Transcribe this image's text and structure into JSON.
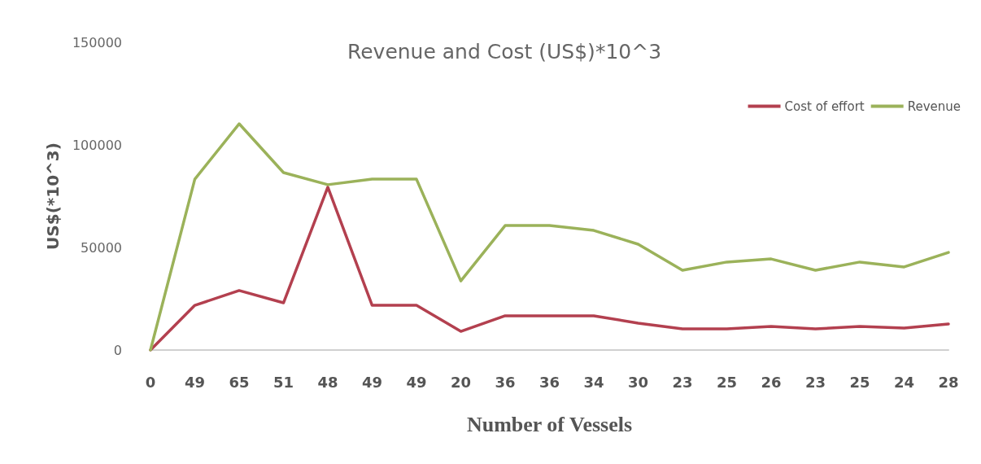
{
  "chart_data": {
    "type": "line",
    "title": "Revenue and Cost (US$)*10^3",
    "xlabel": "Number of Vessels",
    "ylabel": "US$(*10^3)",
    "categories": [
      "0",
      "49",
      "65",
      "51",
      "48",
      "49",
      "49",
      "20",
      "36",
      "36",
      "34",
      "30",
      "23",
      "25",
      "26",
      "23",
      "25",
      "24",
      "28"
    ],
    "series": [
      {
        "name": "Cost of effort",
        "color": "#b3404f",
        "values": [
          0,
          21800,
          29000,
          23000,
          79400,
          21800,
          21800,
          9100,
          16700,
          16700,
          16700,
          13100,
          10300,
          10300,
          11500,
          10300,
          11500,
          10700,
          12700
        ]
      },
      {
        "name": "Revenue",
        "color": "#9bb25a",
        "values": [
          0,
          83300,
          110300,
          86500,
          80600,
          83300,
          83300,
          33700,
          60700,
          60700,
          58300,
          51600,
          38900,
          42900,
          44400,
          38900,
          42900,
          40500,
          47600
        ]
      }
    ],
    "ylim": [
      0,
      150000
    ],
    "yticks": [
      0,
      50000,
      100000,
      150000
    ],
    "grid": false,
    "legend": "top right",
    "marker": "none",
    "line_style": "solid"
  }
}
